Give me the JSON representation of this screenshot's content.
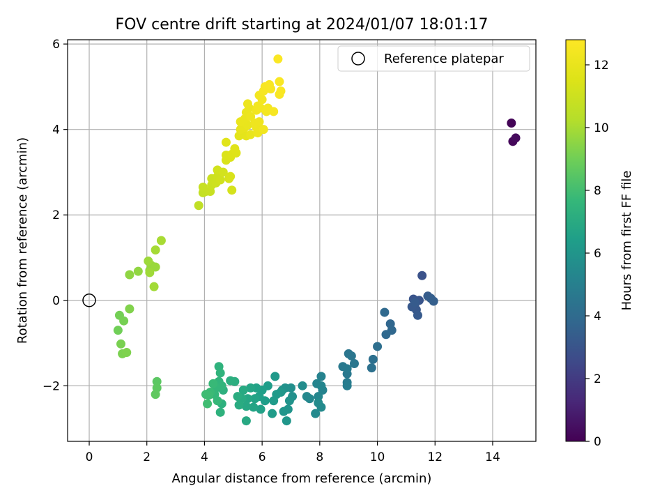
{
  "chart_data": {
    "type": "scatter",
    "title": "FOV centre drift starting at 2024/01/07 18:01:17",
    "xlabel": "Angular distance from reference (arcmin)",
    "ylabel": "Rotation from reference (arcmin)",
    "xlim": [
      -0.75,
      15.5
    ],
    "ylim": [
      -3.3,
      6.1
    ],
    "xticks": [
      0,
      2,
      4,
      6,
      8,
      10,
      12,
      14
    ],
    "yticks": [
      -2,
      0,
      2,
      4,
      6
    ],
    "grid": true,
    "legend": {
      "placement": "upper-right",
      "entries": [
        "Reference platepar"
      ]
    },
    "reference_point": {
      "x": 0,
      "y": 0
    },
    "colorbar": {
      "label": "Hours from first FF file",
      "colormap": "viridis",
      "range": [
        0,
        12.8
      ],
      "ticks": [
        0,
        2,
        4,
        6,
        8,
        10,
        12
      ]
    },
    "points": [
      [
        14.65,
        4.15,
        0.1
      ],
      [
        14.7,
        3.72,
        0.2
      ],
      [
        14.8,
        3.8,
        0.3
      ],
      [
        11.55,
        0.58,
        2.9
      ],
      [
        11.25,
        0.03,
        3.0
      ],
      [
        11.45,
        0.0,
        3.05
      ],
      [
        11.3,
        -0.1,
        3.1
      ],
      [
        11.35,
        -0.22,
        3.15
      ],
      [
        11.2,
        -0.15,
        3.2
      ],
      [
        11.4,
        -0.35,
        3.25
      ],
      [
        11.3,
        -0.05,
        3.3
      ],
      [
        11.75,
        0.1,
        3.35
      ],
      [
        11.85,
        0.05,
        3.4
      ],
      [
        11.95,
        -0.02,
        3.45
      ],
      [
        10.45,
        -0.55,
        3.8
      ],
      [
        10.5,
        -0.7,
        3.85
      ],
      [
        10.3,
        -0.8,
        3.9
      ],
      [
        10.25,
        -0.28,
        3.95
      ],
      [
        10.0,
        -1.08,
        4.2
      ],
      [
        9.85,
        -1.38,
        4.25
      ],
      [
        9.8,
        -1.58,
        4.3
      ],
      [
        9.0,
        -1.25,
        4.5
      ],
      [
        9.1,
        -1.3,
        4.55
      ],
      [
        9.2,
        -1.48,
        4.6
      ],
      [
        8.95,
        -1.72,
        4.65
      ],
      [
        8.8,
        -1.55,
        4.7
      ],
      [
        8.95,
        -1.6,
        4.75
      ],
      [
        8.95,
        -1.92,
        4.8
      ],
      [
        8.95,
        -2.0,
        4.85
      ],
      [
        8.05,
        -1.78,
        5.1
      ],
      [
        8.1,
        -2.1,
        5.15
      ],
      [
        7.9,
        -1.95,
        5.2
      ],
      [
        8.05,
        -2.0,
        5.25
      ],
      [
        7.95,
        -2.25,
        5.3
      ],
      [
        7.65,
        -2.3,
        5.35
      ],
      [
        7.55,
        -2.25,
        5.4
      ],
      [
        7.85,
        -2.65,
        5.45
      ],
      [
        8.05,
        -2.5,
        5.5
      ],
      [
        7.95,
        -2.4,
        5.55
      ],
      [
        7.4,
        -2.0,
        5.6
      ],
      [
        7.0,
        -2.05,
        5.7
      ],
      [
        7.05,
        -2.25,
        5.75
      ],
      [
        6.8,
        -2.05,
        5.8
      ],
      [
        6.7,
        -2.1,
        5.85
      ],
      [
        6.95,
        -2.35,
        5.9
      ],
      [
        6.9,
        -2.55,
        5.95
      ],
      [
        6.75,
        -2.6,
        6.0
      ],
      [
        6.85,
        -2.82,
        6.05
      ],
      [
        6.65,
        -2.15,
        6.1
      ],
      [
        6.45,
        -1.78,
        6.15
      ],
      [
        6.5,
        -2.2,
        6.2
      ],
      [
        6.4,
        -2.35,
        6.25
      ],
      [
        6.35,
        -2.65,
        6.3
      ],
      [
        6.2,
        -2.0,
        6.35
      ],
      [
        6.1,
        -2.35,
        6.4
      ],
      [
        6.0,
        -2.1,
        6.45
      ],
      [
        5.9,
        -2.25,
        6.5
      ],
      [
        5.95,
        -2.55,
        6.55
      ],
      [
        5.8,
        -2.05,
        6.6
      ],
      [
        5.75,
        -2.3,
        6.65
      ],
      [
        5.7,
        -2.5,
        6.7
      ],
      [
        5.6,
        -2.05,
        6.75
      ],
      [
        5.5,
        -2.3,
        6.8
      ],
      [
        5.45,
        -2.48,
        6.85
      ],
      [
        5.45,
        -2.82,
        6.9
      ],
      [
        5.35,
        -2.1,
        6.95
      ],
      [
        5.3,
        -2.3,
        7.0
      ],
      [
        5.2,
        -2.45,
        7.05
      ],
      [
        5.15,
        -2.25,
        7.1
      ],
      [
        5.05,
        -1.9,
        7.15
      ],
      [
        4.9,
        -1.88,
        7.2
      ],
      [
        4.65,
        -2.1,
        7.25
      ],
      [
        4.6,
        -2.42,
        7.3
      ],
      [
        4.55,
        -2.62,
        7.35
      ],
      [
        4.5,
        -1.55,
        7.4
      ],
      [
        4.55,
        -1.7,
        7.45
      ],
      [
        4.5,
        -1.9,
        7.5
      ],
      [
        4.6,
        -2.0,
        7.55
      ],
      [
        4.4,
        -2.05,
        7.6
      ],
      [
        4.35,
        -2.2,
        7.65
      ],
      [
        4.45,
        -2.35,
        7.7
      ],
      [
        4.3,
        -1.95,
        7.75
      ],
      [
        4.2,
        -2.15,
        7.8
      ],
      [
        4.15,
        -2.22,
        7.85
      ],
      [
        4.05,
        -2.2,
        7.9
      ],
      [
        4.1,
        -2.42,
        7.95
      ],
      [
        2.35,
        -1.9,
        8.55
      ],
      [
        2.35,
        -2.05,
        8.6
      ],
      [
        2.3,
        -2.2,
        8.65
      ],
      [
        1.0,
        -0.7,
        9.0
      ],
      [
        1.05,
        -0.35,
        9.05
      ],
      [
        1.2,
        -0.48,
        9.1
      ],
      [
        1.1,
        -1.02,
        9.15
      ],
      [
        1.15,
        -1.25,
        9.2
      ],
      [
        1.3,
        -1.22,
        9.25
      ],
      [
        1.4,
        -0.2,
        9.3
      ],
      [
        1.4,
        0.6,
        9.55
      ],
      [
        1.7,
        0.68,
        9.6
      ],
      [
        2.1,
        0.7,
        9.65
      ],
      [
        2.15,
        0.82,
        9.7
      ],
      [
        2.3,
        0.78,
        9.75
      ],
      [
        2.05,
        0.92,
        9.8
      ],
      [
        2.1,
        0.65,
        9.85
      ],
      [
        2.25,
        0.32,
        9.9
      ],
      [
        2.3,
        1.18,
        9.95
      ],
      [
        2.5,
        1.4,
        10.0
      ],
      [
        3.8,
        2.22,
        10.6
      ],
      [
        3.95,
        2.52,
        10.7
      ],
      [
        4.05,
        2.55,
        10.75
      ],
      [
        3.95,
        2.65,
        10.8
      ],
      [
        4.2,
        2.55,
        10.85
      ],
      [
        4.25,
        2.7,
        10.9
      ],
      [
        4.25,
        2.85,
        10.95
      ],
      [
        4.4,
        2.75,
        11.0
      ],
      [
        4.45,
        2.9,
        11.05
      ],
      [
        4.55,
        2.82,
        11.1
      ],
      [
        4.45,
        3.05,
        11.15
      ],
      [
        4.65,
        3.0,
        11.2
      ],
      [
        4.95,
        2.58,
        11.25
      ],
      [
        4.85,
        2.85,
        11.3
      ],
      [
        4.9,
        2.9,
        11.35
      ],
      [
        4.75,
        3.28,
        11.4
      ],
      [
        4.75,
        3.4,
        11.45
      ],
      [
        4.9,
        3.35,
        11.5
      ],
      [
        4.95,
        3.42,
        11.55
      ],
      [
        5.1,
        3.45,
        11.6
      ],
      [
        5.05,
        3.55,
        11.65
      ],
      [
        4.75,
        3.7,
        11.7
      ],
      [
        5.2,
        3.85,
        11.75
      ],
      [
        5.35,
        3.9,
        11.8
      ],
      [
        5.45,
        3.85,
        11.85
      ],
      [
        5.25,
        4.0,
        11.9
      ],
      [
        5.4,
        4.05,
        11.95
      ],
      [
        5.6,
        3.88,
        12.0
      ],
      [
        5.5,
        4.1,
        12.0
      ],
      [
        5.25,
        4.18,
        12.05
      ],
      [
        5.4,
        4.25,
        12.05
      ],
      [
        5.45,
        4.4,
        12.1
      ],
      [
        5.55,
        4.5,
        12.1
      ],
      [
        5.5,
        4.6,
        12.15
      ],
      [
        5.6,
        4.3,
        12.15
      ],
      [
        5.8,
        4.05,
        12.2
      ],
      [
        5.85,
        3.92,
        12.2
      ],
      [
        5.75,
        4.15,
        12.25
      ],
      [
        5.9,
        4.18,
        12.25
      ],
      [
        6.05,
        4.0,
        12.3
      ],
      [
        5.8,
        4.45,
        12.3
      ],
      [
        5.85,
        4.55,
        12.35
      ],
      [
        5.95,
        4.5,
        12.35
      ],
      [
        6.0,
        4.7,
        12.4
      ],
      [
        5.9,
        4.8,
        12.4
      ],
      [
        6.15,
        4.42,
        12.45
      ],
      [
        6.2,
        4.5,
        12.45
      ],
      [
        6.4,
        4.42,
        12.5
      ],
      [
        6.05,
        4.9,
        12.5
      ],
      [
        6.1,
        5.0,
        12.55
      ],
      [
        6.3,
        4.95,
        12.55
      ],
      [
        6.25,
        5.05,
        12.6
      ],
      [
        6.6,
        4.82,
        12.6
      ],
      [
        6.65,
        4.9,
        12.65
      ],
      [
        6.6,
        5.12,
        12.65
      ],
      [
        6.55,
        5.65,
        12.7
      ]
    ]
  }
}
